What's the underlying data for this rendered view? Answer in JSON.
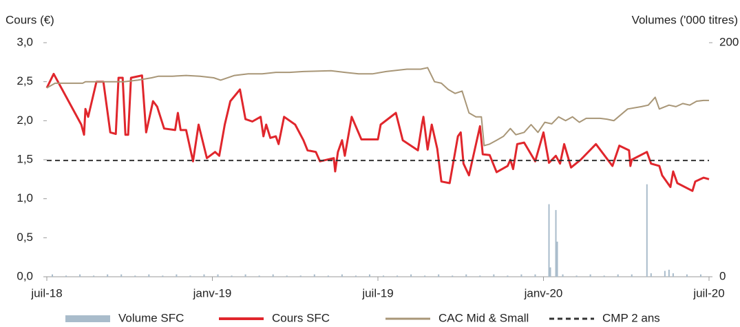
{
  "chart_data": {
    "type": "line",
    "y_label": "Cours (€)",
    "y2_label": "Volumes ('000 titres)",
    "xlim": [
      0,
      24
    ],
    "xticks": [
      {
        "value": 0,
        "label": "juil-18"
      },
      {
        "value": 6,
        "label": "janv-19"
      },
      {
        "value": 12,
        "label": "juil-19"
      },
      {
        "value": 18,
        "label": "janv-20"
      },
      {
        "value": 24,
        "label": "juil-20"
      }
    ],
    "ylim": [
      0,
      3
    ],
    "yticks": [
      {
        "value": 0,
        "label": "0,0"
      },
      {
        "value": 0.5,
        "label": "0,5"
      },
      {
        "value": 1,
        "label": "1,0"
      },
      {
        "value": 1.5,
        "label": "1,5"
      },
      {
        "value": 2,
        "label": "2,0"
      },
      {
        "value": 2.5,
        "label": "2,5"
      },
      {
        "value": 3,
        "label": "3,0"
      }
    ],
    "y2lim": [
      0,
      200
    ],
    "y2ticks": [
      0,
      200
    ],
    "series": [
      {
        "name": "Volume SFC",
        "kind": "bar",
        "axis": "y2",
        "color": "#a9bccb",
        "x": [
          0.2,
          0.7,
          1.2,
          1.7,
          2.2,
          2.7,
          3.2,
          3.7,
          4.2,
          4.7,
          5.2,
          5.7,
          6.2,
          6.7,
          7.2,
          7.7,
          8.2,
          8.7,
          9.2,
          9.7,
          10.2,
          10.7,
          11.2,
          11.7,
          12.2,
          12.7,
          13.2,
          13.7,
          14.2,
          14.7,
          15.2,
          15.7,
          16.2,
          16.7,
          17.2,
          17.7,
          18.2,
          18.25,
          18.45,
          18.5,
          18.7,
          19.2,
          19.7,
          20.2,
          20.7,
          21.2,
          21.75,
          21.9,
          22.4,
          22.55,
          22.7,
          23.2,
          23.7
        ],
        "values": [
          2,
          1,
          2,
          1,
          2,
          2,
          1,
          2,
          1,
          2,
          1,
          2,
          2,
          1,
          2,
          1,
          2,
          1,
          1,
          2,
          1,
          2,
          1,
          2,
          1,
          1,
          2,
          1,
          2,
          1,
          2,
          1,
          2,
          1,
          2,
          2,
          62,
          8,
          57,
          30,
          2,
          1,
          2,
          1,
          2,
          2,
          79,
          3,
          5,
          6,
          3,
          2,
          2
        ]
      },
      {
        "name": "Cours SFC",
        "color": "#e0262c",
        "width": 3,
        "x": [
          0,
          0.25,
          1.25,
          1.35,
          1.4,
          1.5,
          1.8,
          2.05,
          2.3,
          2.5,
          2.6,
          2.75,
          2.85,
          2.95,
          3.05,
          3.45,
          3.6,
          3.85,
          4,
          4.25,
          4.65,
          4.75,
          4.85,
          5.05,
          5.3,
          5.5,
          5.8,
          6.1,
          6.25,
          6.45,
          6.65,
          7,
          7.2,
          7.45,
          7.75,
          7.85,
          7.95,
          8.1,
          8.3,
          8.4,
          8.6,
          9,
          9.3,
          9.45,
          9.75,
          9.9,
          10.4,
          10.45,
          10.55,
          10.7,
          10.8,
          11.05,
          11.4,
          12,
          12.1,
          12.65,
          12.9,
          13.45,
          13.6,
          13.65,
          13.8,
          13.95,
          14.15,
          14.3,
          14.6,
          14.9,
          15,
          15.1,
          15.3,
          15.7,
          15.8,
          16.05,
          16.3,
          16.7,
          16.8,
          16.9,
          17.05,
          17.3,
          17.7,
          18,
          18.2,
          18.45,
          18.6,
          18.75,
          19,
          19.35,
          19.9,
          20.5,
          20.75,
          21.1,
          21.15,
          21.2,
          21.75,
          21.9,
          22.2,
          22.3,
          22.5,
          22.6,
          22.7,
          22.85,
          23.4,
          23.5,
          23.8,
          24
        ],
        "values": [
          2.42,
          2.6,
          1.95,
          1.82,
          2.15,
          2.05,
          2.5,
          2.5,
          1.85,
          1.83,
          2.55,
          2.55,
          1.82,
          1.82,
          2.55,
          2.58,
          1.85,
          2.25,
          2.18,
          1.9,
          1.88,
          2.1,
          1.88,
          1.88,
          1.48,
          1.95,
          1.52,
          1.6,
          1.55,
          1.95,
          2.25,
          2.4,
          2.02,
          1.99,
          2.05,
          1.8,
          1.95,
          1.78,
          1.8,
          1.7,
          2.05,
          1.95,
          1.75,
          1.62,
          1.6,
          1.48,
          1.52,
          1.35,
          1.6,
          1.75,
          1.55,
          2.05,
          1.76,
          1.76,
          1.95,
          2.1,
          1.75,
          1.62,
          1.96,
          2.05,
          1.63,
          1.95,
          1.64,
          1.22,
          1.2,
          1.8,
          1.85,
          1.45,
          1.3,
          1.93,
          1.57,
          1.56,
          1.34,
          1.42,
          1.5,
          1.38,
          1.7,
          1.72,
          1.48,
          1.85,
          1.46,
          1.55,
          1.45,
          1.7,
          1.4,
          1.5,
          1.7,
          1.42,
          1.68,
          1.62,
          1.42,
          1.5,
          1.6,
          1.45,
          1.42,
          1.3,
          1.2,
          1.15,
          1.35,
          1.2,
          1.1,
          1.22,
          1.27,
          1.25
        ]
      },
      {
        "name": "CAC Mid & Small",
        "color": "#a89677",
        "width": 2,
        "x": [
          0,
          0.3,
          1.3,
          1.4,
          2.8,
          3.3,
          3.8,
          4.05,
          4.55,
          5.05,
          5.55,
          6.05,
          6.3,
          6.8,
          7.3,
          7.8,
          8.3,
          8.8,
          9.3,
          10.3,
          10.8,
          11.3,
          11.8,
          12.3,
          13.05,
          13.55,
          13.8,
          14.05,
          14.3,
          14.55,
          14.8,
          15.05,
          15.3,
          15.55,
          15.75,
          15.85,
          16.05,
          16.3,
          16.55,
          16.8,
          17,
          17.3,
          17.55,
          17.8,
          18.05,
          18.3,
          18.55,
          18.8,
          19.05,
          19.3,
          19.55,
          20.05,
          20.3,
          20.55,
          21.05,
          21.55,
          21.8,
          22.05,
          22.2,
          22.55,
          22.8,
          23.05,
          23.3,
          23.55,
          23.8,
          24
        ],
        "values": [
          2.42,
          2.48,
          2.48,
          2.5,
          2.5,
          2.52,
          2.55,
          2.57,
          2.57,
          2.58,
          2.57,
          2.55,
          2.52,
          2.58,
          2.6,
          2.6,
          2.62,
          2.62,
          2.63,
          2.64,
          2.62,
          2.6,
          2.6,
          2.63,
          2.66,
          2.66,
          2.68,
          2.5,
          2.48,
          2.4,
          2.35,
          2.38,
          2.1,
          2.05,
          2.05,
          1.68,
          1.7,
          1.75,
          1.8,
          1.9,
          1.82,
          1.85,
          1.95,
          1.85,
          1.98,
          1.96,
          2.05,
          2,
          2.05,
          1.98,
          2.03,
          2.03,
          2.02,
          2,
          2.15,
          2.18,
          2.2,
          2.3,
          2.15,
          2.2,
          2.18,
          2.22,
          2.2,
          2.25,
          2.26,
          2.26
        ]
      },
      {
        "name": "CMP 2 ans",
        "color": "#333333",
        "width": 2,
        "dash": true,
        "x": [
          0,
          24
        ],
        "values": [
          1.49,
          1.49
        ]
      }
    ]
  }
}
